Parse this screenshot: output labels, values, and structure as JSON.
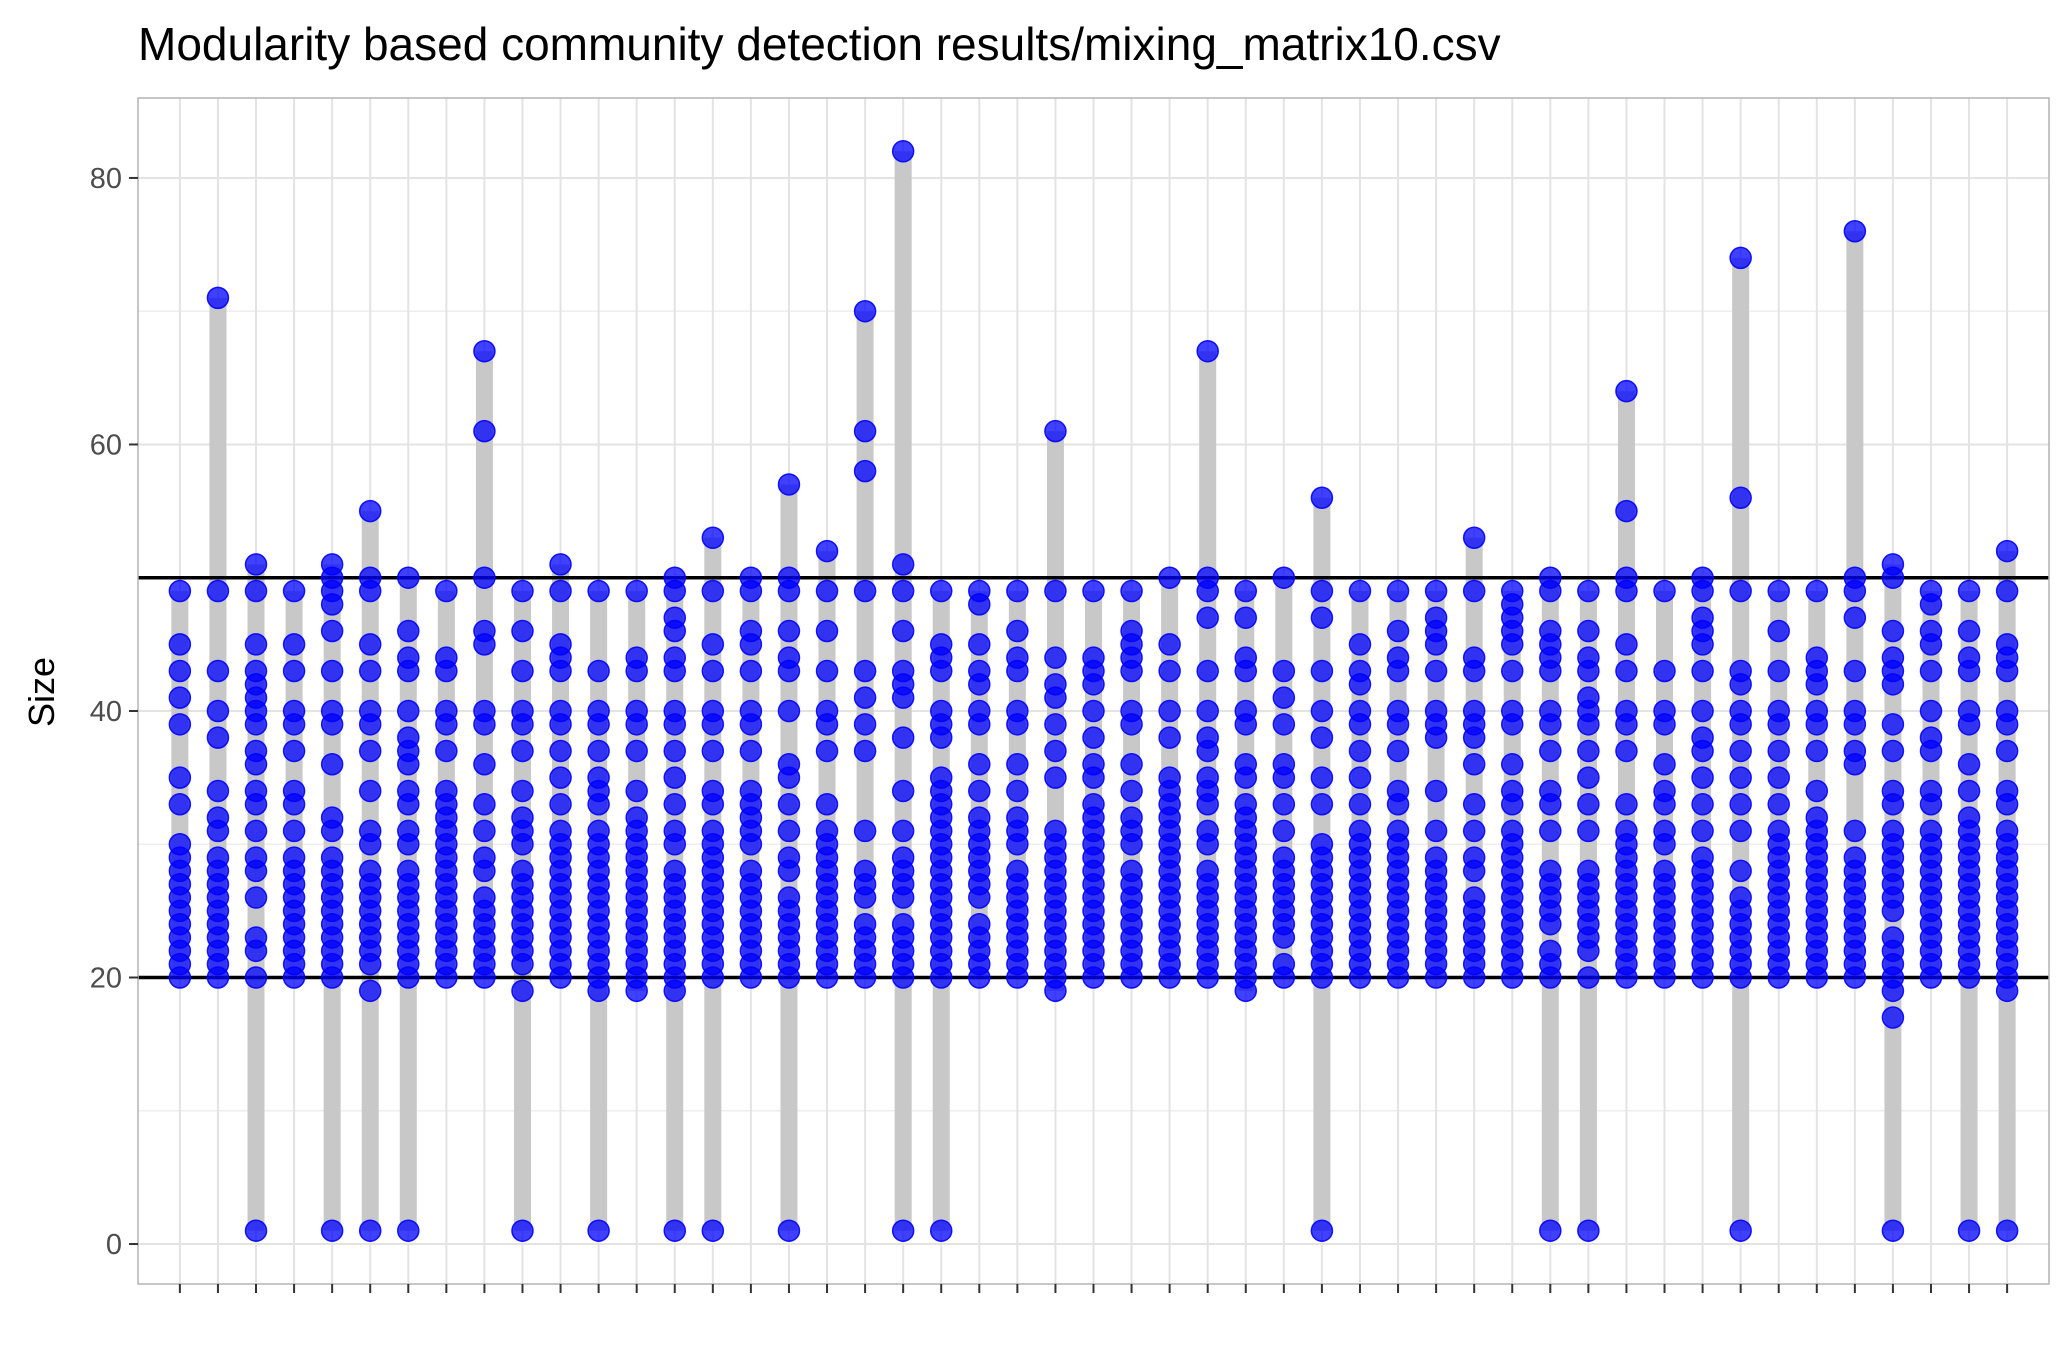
{
  "chart_data": {
    "type": "scatter",
    "title": "Modularity based community detection results/mixing_matrix10.csv",
    "xlabel": "",
    "ylabel": "Size",
    "ylim": [
      -3,
      86
    ],
    "yticks": [
      0,
      20,
      40,
      60,
      80
    ],
    "x_tick_labels": "none",
    "grid": true,
    "legend": "none",
    "reference_lines": [
      20,
      50
    ],
    "colors": {
      "points": "#0000ff",
      "range_bar": "#c8c8c8",
      "reference_line": "#000000",
      "grid": "#e3e3e3",
      "border": "#b3b3b3"
    },
    "groups": [
      {
        "min": 20,
        "max": 49,
        "values": [
          49,
          45,
          43,
          41,
          39,
          35,
          33,
          30,
          29,
          28,
          27,
          26,
          25,
          24,
          23,
          22,
          21,
          20
        ]
      },
      {
        "min": 20,
        "max": 71,
        "values": [
          71,
          49,
          43,
          40,
          38,
          34,
          32,
          31,
          29,
          28,
          27,
          26,
          25,
          24,
          23,
          22,
          21,
          20
        ]
      },
      {
        "min": 1,
        "max": 51,
        "values": [
          51,
          49,
          45,
          43,
          42,
          41,
          40,
          39,
          37,
          36,
          34,
          33,
          31,
          29,
          28,
          26,
          23,
          22,
          20,
          1
        ]
      },
      {
        "min": 20,
        "max": 49,
        "values": [
          49,
          45,
          43,
          40,
          39,
          37,
          34,
          33,
          31,
          29,
          28,
          27,
          26,
          25,
          24,
          23,
          22,
          21,
          20
        ]
      },
      {
        "min": 1,
        "max": 51,
        "values": [
          51,
          50,
          49,
          48,
          46,
          43,
          40,
          39,
          36,
          32,
          31,
          29,
          28,
          27,
          26,
          25,
          24,
          23,
          22,
          21,
          20,
          1
        ]
      },
      {
        "min": 1,
        "max": 55,
        "values": [
          55,
          50,
          49,
          45,
          43,
          40,
          39,
          37,
          34,
          31,
          30,
          28,
          27,
          26,
          25,
          24,
          23,
          22,
          21,
          19,
          1
        ]
      },
      {
        "min": 1,
        "max": 50,
        "values": [
          50,
          46,
          44,
          43,
          40,
          38,
          37,
          36,
          34,
          33,
          31,
          30,
          28,
          27,
          26,
          25,
          24,
          23,
          22,
          21,
          20,
          1
        ]
      },
      {
        "min": 20,
        "max": 49,
        "values": [
          49,
          44,
          43,
          40,
          39,
          37,
          34,
          33,
          32,
          31,
          30,
          29,
          28,
          27,
          26,
          25,
          24,
          23,
          22,
          21,
          20
        ]
      },
      {
        "min": 20,
        "max": 67,
        "values": [
          67,
          61,
          50,
          46,
          45,
          40,
          39,
          36,
          33,
          31,
          29,
          28,
          26,
          25,
          24,
          23,
          22,
          21,
          20
        ]
      },
      {
        "min": 1,
        "max": 49,
        "values": [
          49,
          46,
          43,
          40,
          39,
          37,
          34,
          32,
          31,
          30,
          28,
          27,
          26,
          25,
          24,
          23,
          22,
          21,
          19,
          1
        ]
      },
      {
        "min": 20,
        "max": 51,
        "values": [
          51,
          49,
          45,
          44,
          43,
          40,
          39,
          37,
          35,
          33,
          31,
          30,
          29,
          28,
          27,
          26,
          25,
          24,
          23,
          22,
          21,
          20
        ]
      },
      {
        "min": 1,
        "max": 49,
        "values": [
          49,
          43,
          40,
          39,
          37,
          35,
          34,
          33,
          31,
          30,
          29,
          28,
          27,
          26,
          25,
          24,
          23,
          22,
          21,
          20,
          19,
          1
        ]
      },
      {
        "min": 19,
        "max": 49,
        "values": [
          49,
          44,
          43,
          40,
          39,
          37,
          34,
          32,
          31,
          30,
          29,
          28,
          27,
          26,
          25,
          24,
          23,
          22,
          21,
          20,
          19
        ]
      },
      {
        "min": 1,
        "max": 50,
        "values": [
          50,
          49,
          47,
          46,
          44,
          43,
          40,
          39,
          37,
          35,
          33,
          31,
          30,
          28,
          27,
          26,
          25,
          24,
          23,
          22,
          21,
          20,
          19,
          1
        ]
      },
      {
        "min": 1,
        "max": 53,
        "values": [
          53,
          49,
          45,
          43,
          40,
          39,
          37,
          34,
          33,
          31,
          30,
          29,
          28,
          27,
          26,
          25,
          24,
          23,
          22,
          21,
          20,
          1
        ]
      },
      {
        "min": 20,
        "max": 50,
        "values": [
          50,
          49,
          46,
          45,
          43,
          40,
          39,
          37,
          34,
          33,
          32,
          31,
          30,
          28,
          27,
          26,
          25,
          24,
          23,
          22,
          21,
          20
        ]
      },
      {
        "min": 1,
        "max": 57,
        "values": [
          57,
          50,
          49,
          46,
          44,
          43,
          40,
          36,
          35,
          33,
          31,
          29,
          28,
          26,
          25,
          24,
          23,
          22,
          21,
          20,
          1
        ]
      },
      {
        "min": 20,
        "max": 52,
        "values": [
          52,
          49,
          46,
          43,
          40,
          39,
          37,
          33,
          31,
          30,
          29,
          28,
          27,
          26,
          25,
          24,
          23,
          22,
          21,
          20
        ]
      },
      {
        "min": 20,
        "max": 70,
        "values": [
          70,
          61,
          58,
          49,
          43,
          41,
          39,
          37,
          31,
          28,
          27,
          26,
          24,
          23,
          22,
          21,
          20
        ]
      },
      {
        "min": 1,
        "max": 82,
        "values": [
          82,
          51,
          49,
          46,
          43,
          42,
          41,
          38,
          34,
          31,
          29,
          28,
          27,
          26,
          24,
          23,
          22,
          21,
          20,
          1
        ]
      },
      {
        "min": 1,
        "max": 49,
        "values": [
          49,
          45,
          44,
          43,
          40,
          39,
          38,
          35,
          34,
          33,
          32,
          31,
          30,
          29,
          28,
          27,
          26,
          25,
          24,
          23,
          22,
          21,
          20,
          1
        ]
      },
      {
        "min": 20,
        "max": 49,
        "values": [
          49,
          48,
          45,
          43,
          42,
          40,
          39,
          36,
          34,
          32,
          31,
          30,
          29,
          28,
          27,
          26,
          24,
          23,
          22,
          21,
          20
        ]
      },
      {
        "min": 20,
        "max": 49,
        "values": [
          49,
          46,
          44,
          43,
          40,
          39,
          36,
          34,
          32,
          31,
          30,
          28,
          27,
          26,
          25,
          24,
          23,
          22,
          21,
          20
        ]
      },
      {
        "min": 19,
        "max": 61,
        "values": [
          61,
          49,
          44,
          42,
          41,
          39,
          37,
          35,
          31,
          30,
          29,
          28,
          27,
          26,
          25,
          24,
          23,
          22,
          21,
          20,
          19
        ]
      },
      {
        "min": 20,
        "max": 49,
        "values": [
          49,
          44,
          43,
          42,
          40,
          38,
          36,
          35,
          33,
          32,
          31,
          30,
          29,
          28,
          27,
          26,
          25,
          24,
          23,
          22,
          21,
          20
        ]
      },
      {
        "min": 20,
        "max": 49,
        "values": [
          49,
          46,
          45,
          44,
          43,
          40,
          39,
          36,
          34,
          32,
          31,
          30,
          28,
          27,
          26,
          25,
          24,
          23,
          22,
          21,
          20
        ]
      },
      {
        "min": 20,
        "max": 50,
        "values": [
          50,
          45,
          43,
          40,
          38,
          35,
          34,
          33,
          32,
          31,
          30,
          29,
          28,
          27,
          26,
          25,
          24,
          23,
          22,
          21,
          20
        ]
      },
      {
        "min": 20,
        "max": 67,
        "values": [
          67,
          50,
          49,
          47,
          43,
          40,
          38,
          37,
          35,
          34,
          33,
          31,
          30,
          28,
          27,
          26,
          25,
          24,
          23,
          22,
          21,
          20
        ]
      },
      {
        "min": 19,
        "max": 49,
        "values": [
          49,
          47,
          44,
          43,
          40,
          39,
          36,
          35,
          33,
          32,
          31,
          30,
          29,
          28,
          27,
          26,
          25,
          24,
          23,
          22,
          21,
          20,
          19
        ]
      },
      {
        "min": 20,
        "max": 50,
        "values": [
          50,
          43,
          41,
          39,
          36,
          35,
          33,
          31,
          29,
          28,
          27,
          26,
          25,
          24,
          23,
          21,
          20
        ]
      },
      {
        "min": 1,
        "max": 56,
        "values": [
          56,
          49,
          47,
          43,
          40,
          38,
          35,
          33,
          30,
          29,
          28,
          27,
          26,
          25,
          24,
          23,
          22,
          21,
          20,
          1
        ]
      },
      {
        "min": 20,
        "max": 49,
        "values": [
          49,
          45,
          43,
          42,
          40,
          39,
          37,
          35,
          33,
          31,
          30,
          29,
          28,
          27,
          26,
          25,
          24,
          23,
          22,
          21,
          20
        ]
      },
      {
        "min": 20,
        "max": 49,
        "values": [
          49,
          46,
          44,
          43,
          40,
          39,
          37,
          34,
          33,
          31,
          30,
          29,
          28,
          27,
          26,
          25,
          24,
          23,
          22,
          21,
          20
        ]
      },
      {
        "min": 20,
        "max": 49,
        "values": [
          49,
          47,
          46,
          45,
          43,
          40,
          39,
          38,
          34,
          31,
          29,
          28,
          27,
          26,
          25,
          24,
          23,
          22,
          21,
          20
        ]
      },
      {
        "min": 20,
        "max": 53,
        "values": [
          53,
          49,
          44,
          43,
          40,
          39,
          38,
          36,
          33,
          31,
          29,
          28,
          26,
          25,
          24,
          23,
          22,
          21,
          20
        ]
      },
      {
        "min": 20,
        "max": 49,
        "values": [
          49,
          48,
          47,
          46,
          45,
          43,
          40,
          39,
          36,
          34,
          33,
          31,
          30,
          29,
          28,
          27,
          26,
          25,
          24,
          23,
          22,
          21,
          20
        ]
      },
      {
        "min": 1,
        "max": 50,
        "values": [
          50,
          49,
          46,
          45,
          44,
          43,
          40,
          39,
          37,
          34,
          33,
          31,
          28,
          27,
          26,
          25,
          24,
          22,
          21,
          20,
          1
        ]
      },
      {
        "min": 1,
        "max": 49,
        "values": [
          49,
          46,
          44,
          43,
          41,
          40,
          39,
          37,
          35,
          33,
          31,
          28,
          27,
          26,
          25,
          24,
          23,
          22,
          20,
          1
        ]
      },
      {
        "min": 20,
        "max": 64,
        "values": [
          64,
          55,
          50,
          49,
          45,
          43,
          40,
          39,
          37,
          33,
          31,
          30,
          29,
          28,
          27,
          26,
          25,
          24,
          23,
          22,
          21,
          20
        ]
      },
      {
        "min": 20,
        "max": 49,
        "values": [
          49,
          43,
          40,
          39,
          36,
          34,
          33,
          31,
          30,
          28,
          27,
          26,
          25,
          24,
          23,
          22,
          21,
          20
        ]
      },
      {
        "min": 20,
        "max": 50,
        "values": [
          50,
          49,
          47,
          46,
          45,
          43,
          40,
          38,
          37,
          35,
          33,
          31,
          29,
          28,
          27,
          26,
          25,
          24,
          23,
          22,
          21,
          20
        ]
      },
      {
        "min": 1,
        "max": 74,
        "values": [
          74,
          56,
          49,
          43,
          42,
          40,
          39,
          37,
          35,
          33,
          31,
          28,
          26,
          25,
          24,
          23,
          22,
          21,
          20,
          1
        ]
      },
      {
        "min": 20,
        "max": 49,
        "values": [
          49,
          46,
          43,
          40,
          39,
          37,
          35,
          33,
          31,
          30,
          29,
          28,
          27,
          26,
          25,
          24,
          23,
          22,
          21,
          20
        ]
      },
      {
        "min": 20,
        "max": 49,
        "values": [
          49,
          44,
          43,
          42,
          40,
          39,
          37,
          34,
          32,
          31,
          30,
          29,
          28,
          27,
          26,
          25,
          24,
          23,
          22,
          21,
          20
        ]
      },
      {
        "min": 20,
        "max": 76,
        "values": [
          76,
          50,
          49,
          47,
          43,
          40,
          39,
          37,
          36,
          31,
          29,
          28,
          27,
          26,
          25,
          24,
          23,
          22,
          21,
          20
        ]
      },
      {
        "min": 1,
        "max": 51,
        "values": [
          51,
          50,
          46,
          44,
          43,
          42,
          39,
          37,
          34,
          33,
          31,
          30,
          29,
          28,
          27,
          26,
          25,
          23,
          22,
          21,
          20,
          19,
          17,
          1
        ]
      },
      {
        "min": 20,
        "max": 49,
        "values": [
          49,
          48,
          46,
          45,
          43,
          40,
          38,
          37,
          34,
          33,
          31,
          30,
          29,
          28,
          27,
          26,
          25,
          24,
          23,
          22,
          21,
          20
        ]
      },
      {
        "min": 1,
        "max": 49,
        "values": [
          49,
          46,
          44,
          43,
          40,
          39,
          36,
          34,
          32,
          31,
          30,
          29,
          28,
          27,
          26,
          25,
          24,
          23,
          22,
          21,
          20,
          1
        ]
      },
      {
        "min": 1,
        "max": 52,
        "values": [
          52,
          49,
          45,
          44,
          43,
          40,
          39,
          37,
          34,
          33,
          31,
          30,
          29,
          28,
          27,
          26,
          25,
          24,
          23,
          22,
          21,
          20,
          19,
          1
        ]
      }
    ]
  }
}
